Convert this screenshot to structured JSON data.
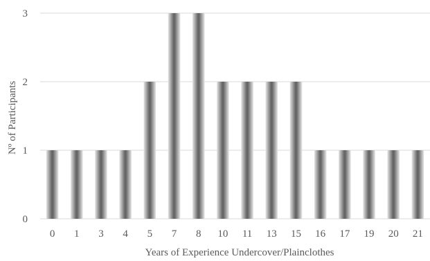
{
  "chart_data": {
    "type": "bar",
    "categories": [
      "0",
      "1",
      "3",
      "4",
      "5",
      "7",
      "8",
      "10",
      "11",
      "13",
      "15",
      "16",
      "17",
      "19",
      "20",
      "21"
    ],
    "values": [
      1,
      1,
      1,
      1,
      2,
      3,
      3,
      2,
      2,
      2,
      2,
      1,
      1,
      1,
      1,
      1
    ],
    "title": "",
    "xlabel": "Years of Experience Undercover/Plainclothes",
    "ylabel": "Nº of Participants",
    "ylim": [
      0,
      3
    ],
    "yticks": [
      "0",
      "1",
      "2",
      "3"
    ],
    "grid": true,
    "legend": "none",
    "colors": {
      "bar_edge": "#d9d9d9",
      "bar_mid": "#666666",
      "gridline": "#d9d9d9",
      "text": "#595959"
    }
  }
}
